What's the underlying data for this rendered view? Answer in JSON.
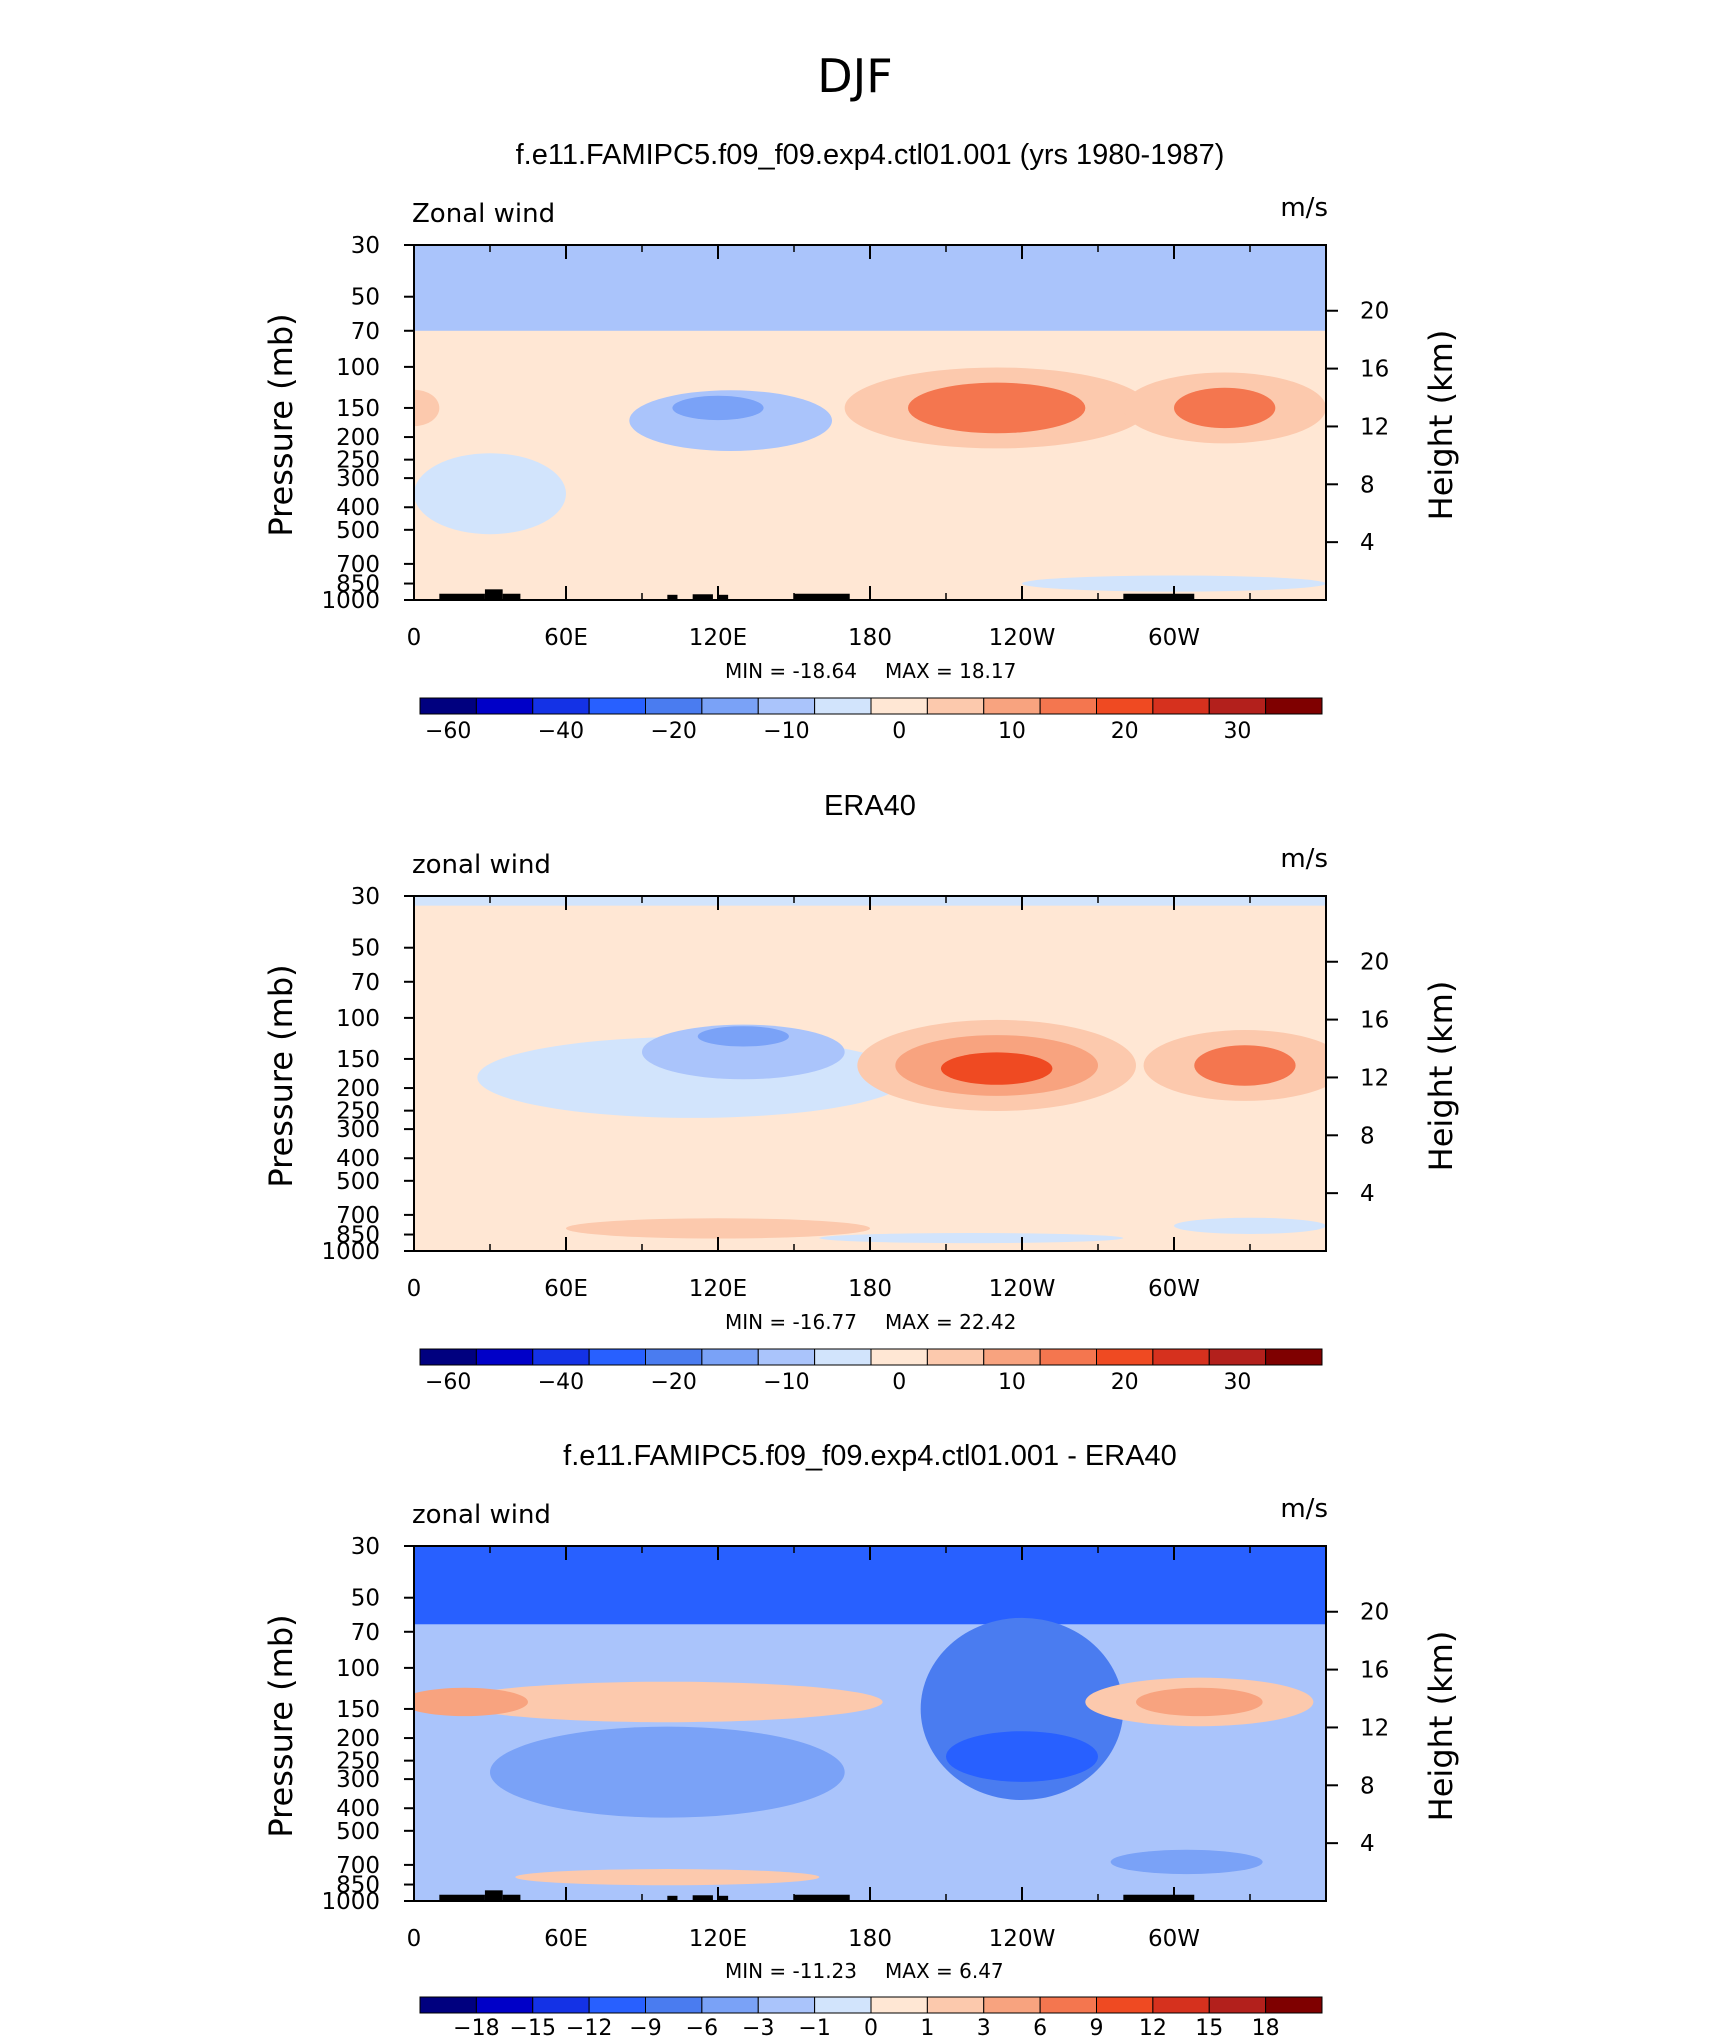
{
  "page": {
    "title": "DJF"
  },
  "colorbars": {
    "main_colors": [
      "#00007f",
      "#0000c8",
      "#1432e6",
      "#2860ff",
      "#4a7cf0",
      "#7aa2f7",
      "#aac4fb",
      "#d2e4fc",
      "#ffe7d4",
      "#fcc9ad",
      "#f8a37f",
      "#f4764f",
      "#ef4a22",
      "#d6311e",
      "#b3201c",
      "#7f0000"
    ],
    "main_labels": [
      "-60",
      "-40",
      "-20",
      "-10",
      "0",
      "10",
      "20",
      "30"
    ],
    "main_label_positions": [
      0.5,
      2.5,
      4.5,
      6.5,
      8.5,
      10.5,
      12.5,
      14.5
    ],
    "diff_colors": [
      "#00007f",
      "#0000c8",
      "#1432e6",
      "#2860ff",
      "#4a7cf0",
      "#7aa2f7",
      "#aac4fb",
      "#d2e4fc",
      "#ffe7d4",
      "#fcc9ad",
      "#f8a37f",
      "#f4764f",
      "#ef4a22",
      "#d6311e",
      "#b3201c",
      "#7f0000"
    ],
    "diff_labels": [
      "-18",
      "-15",
      "-12",
      "-9",
      "-6",
      "-3",
      "-1",
      "0",
      "1",
      "3",
      "6",
      "9",
      "12",
      "15",
      "18"
    ]
  },
  "chart_data": [
    {
      "type": "heatmap",
      "title": "f.e11.FAMIPC5.f09_f09.exp4.ctl01.001 (yrs 1980-1987)",
      "corner_left": "Zonal wind",
      "corner_right": "m/s",
      "ylabel": "Pressure (mb)",
      "ylabel_right": "Height (km)",
      "x_ticks": [
        "0",
        "60E",
        "120E",
        "180",
        "120W",
        "60W"
      ],
      "x_tick_lon": [
        0,
        60,
        120,
        180,
        240,
        300
      ],
      "xlim": [
        0,
        360
      ],
      "y_ticks": [
        "30",
        "50",
        "70",
        "100",
        "150",
        "200",
        "250",
        "300",
        "400",
        "500",
        "700",
        "850",
        "1000"
      ],
      "y_tick_p": [
        30,
        50,
        70,
        100,
        150,
        200,
        250,
        300,
        400,
        500,
        700,
        850,
        1000
      ],
      "ylim": [
        1000,
        30
      ],
      "y_scale": "log",
      "right_ticks": [
        "4",
        "8",
        "12",
        "16",
        "20"
      ],
      "right_tick_km": [
        4,
        8,
        12,
        16,
        20
      ],
      "stats_min_label": "MIN = -18.64",
      "stats_max_label": "MAX = 18.17",
      "min": -18.64,
      "max": 18.17,
      "background_level": 0,
      "features": [
        {
          "type": "band",
          "pmin": 30,
          "pmax": 70,
          "level": -10
        },
        {
          "type": "blob",
          "lon": 0,
          "p": 150,
          "rlon": 10,
          "rlogp": 0.18,
          "level": 5
        },
        {
          "type": "blob",
          "lon": 30,
          "p": 350,
          "rlon": 30,
          "rlogp": 0.4,
          "level": -5
        },
        {
          "type": "blob",
          "lon": 125,
          "p": 170,
          "rlon": 40,
          "rlogp": 0.3,
          "level": -8
        },
        {
          "type": "blob",
          "lon": 120,
          "p": 150,
          "rlon": 18,
          "rlogp": 0.12,
          "level": -13
        },
        {
          "type": "blob",
          "lon": 230,
          "p": 150,
          "rlon": 60,
          "rlogp": 0.4,
          "level": 8
        },
        {
          "type": "blob",
          "lon": 230,
          "p": 150,
          "rlon": 35,
          "rlogp": 0.25,
          "level": 16
        },
        {
          "type": "blob",
          "lon": 320,
          "p": 150,
          "rlon": 40,
          "rlogp": 0.35,
          "level": 8
        },
        {
          "type": "blob",
          "lon": 320,
          "p": 150,
          "rlon": 20,
          "rlogp": 0.2,
          "level": 16
        },
        {
          "type": "blob",
          "lon": 100,
          "p": 780,
          "rlon": 55,
          "rlogp": 0.12,
          "level": 4
        },
        {
          "type": "blob",
          "lon": 300,
          "p": 850,
          "rlon": 60,
          "rlogp": 0.08,
          "level": -5
        }
      ],
      "topography": [
        [
          10,
          28,
          1000,
          940
        ],
        [
          28,
          35,
          1000,
          900
        ],
        [
          35,
          42,
          1000,
          940
        ],
        [
          100,
          104,
          1000,
          950
        ],
        [
          110,
          118,
          1000,
          945
        ],
        [
          120,
          124,
          1000,
          950
        ],
        [
          150,
          172,
          1000,
          940
        ],
        [
          280,
          308,
          1000,
          940
        ]
      ]
    },
    {
      "type": "heatmap",
      "title": "ERA40",
      "corner_left": "zonal wind",
      "corner_right": "m/s",
      "ylabel": "Pressure (mb)",
      "ylabel_right": "Height (km)",
      "x_ticks": [
        "0",
        "60E",
        "120E",
        "180",
        "120W",
        "60W"
      ],
      "x_tick_lon": [
        0,
        60,
        120,
        180,
        240,
        300
      ],
      "xlim": [
        0,
        360
      ],
      "y_ticks": [
        "30",
        "50",
        "70",
        "100",
        "150",
        "200",
        "250",
        "300",
        "400",
        "500",
        "700",
        "850",
        "1000"
      ],
      "y_tick_p": [
        30,
        50,
        70,
        100,
        150,
        200,
        250,
        300,
        400,
        500,
        700,
        850,
        1000
      ],
      "ylim": [
        1000,
        30
      ],
      "y_scale": "log",
      "right_ticks": [
        "4",
        "8",
        "12",
        "16",
        "20"
      ],
      "right_tick_km": [
        4,
        8,
        12,
        16,
        20
      ],
      "stats_min_label": "MIN = -16.77",
      "stats_max_label": "MAX = 22.42",
      "min": -16.77,
      "max": 22.42,
      "background_level": 2,
      "features": [
        {
          "type": "band",
          "pmin": 30,
          "pmax": 33,
          "level": -5
        },
        {
          "type": "blob",
          "lon": 110,
          "p": 180,
          "rlon": 85,
          "rlogp": 0.4,
          "level": -5
        },
        {
          "type": "blob",
          "lon": 130,
          "p": 140,
          "rlon": 40,
          "rlogp": 0.27,
          "level": -8
        },
        {
          "type": "blob",
          "lon": 130,
          "p": 120,
          "rlon": 18,
          "rlogp": 0.1,
          "level": -13
        },
        {
          "type": "blob",
          "lon": 230,
          "p": 160,
          "rlon": 55,
          "rlogp": 0.45,
          "level": 6
        },
        {
          "type": "blob",
          "lon": 230,
          "p": 160,
          "rlon": 40,
          "rlogp": 0.3,
          "level": 13
        },
        {
          "type": "blob",
          "lon": 230,
          "p": 165,
          "rlon": 22,
          "rlogp": 0.16,
          "level": 20
        },
        {
          "type": "blob",
          "lon": 328,
          "p": 160,
          "rlon": 40,
          "rlogp": 0.35,
          "level": 8
        },
        {
          "type": "blob",
          "lon": 328,
          "p": 160,
          "rlon": 20,
          "rlogp": 0.2,
          "level": 16
        },
        {
          "type": "blob",
          "lon": 120,
          "p": 800,
          "rlon": 60,
          "rlogp": 0.1,
          "level": 5
        },
        {
          "type": "blob",
          "lon": 220,
          "p": 880,
          "rlon": 60,
          "rlogp": 0.05,
          "level": -5
        },
        {
          "type": "blob",
          "lon": 330,
          "p": 780,
          "rlon": 30,
          "rlogp": 0.08,
          "level": -5
        }
      ],
      "topography": []
    },
    {
      "type": "heatmap",
      "title": "f.e11.FAMIPC5.f09_f09.exp4.ctl01.001 - ERA40",
      "corner_left": "zonal wind",
      "corner_right": "m/s",
      "ylabel": "Pressure (mb)",
      "ylabel_right": "Height (km)",
      "x_ticks": [
        "0",
        "60E",
        "120E",
        "180",
        "120W",
        "60W"
      ],
      "x_tick_lon": [
        0,
        60,
        120,
        180,
        240,
        300
      ],
      "xlim": [
        0,
        360
      ],
      "y_ticks": [
        "30",
        "50",
        "70",
        "100",
        "150",
        "200",
        "250",
        "300",
        "400",
        "500",
        "700",
        "850",
        "1000"
      ],
      "y_tick_p": [
        30,
        50,
        70,
        100,
        150,
        200,
        250,
        300,
        400,
        500,
        700,
        850,
        1000
      ],
      "ylim": [
        1000,
        30
      ],
      "y_scale": "log",
      "right_ticks": [
        "4",
        "8",
        "12",
        "16",
        "20"
      ],
      "right_tick_km": [
        4,
        8,
        12,
        16,
        20
      ],
      "stats_min_label": "MIN = -11.23",
      "stats_max_label": "MAX = 6.47",
      "min": -11.23,
      "max": 6.47,
      "background_level": -2,
      "features": [
        {
          "type": "band",
          "pmin": 30,
          "pmax": 65,
          "level": -10
        },
        {
          "type": "blob",
          "lon": 240,
          "p": 150,
          "rlon": 40,
          "rlogp": 0.9,
          "level": -7
        },
        {
          "type": "blob",
          "lon": 100,
          "p": 280,
          "rlon": 70,
          "rlogp": 0.45,
          "level": -5
        },
        {
          "type": "blob",
          "lon": 240,
          "p": 240,
          "rlon": 30,
          "rlogp": 0.25,
          "level": -10
        },
        {
          "type": "blob",
          "lon": 100,
          "p": 140,
          "rlon": 85,
          "rlogp": 0.2,
          "level": 2
        },
        {
          "type": "blob",
          "lon": 20,
          "p": 140,
          "rlon": 25,
          "rlogp": 0.14,
          "level": 4
        },
        {
          "type": "blob",
          "lon": 310,
          "p": 140,
          "rlon": 45,
          "rlogp": 0.24,
          "level": 2
        },
        {
          "type": "blob",
          "lon": 310,
          "p": 140,
          "rlon": 25,
          "rlogp": 0.14,
          "level": 4
        },
        {
          "type": "blob",
          "lon": 100,
          "p": 790,
          "rlon": 60,
          "rlogp": 0.08,
          "level": 2
        },
        {
          "type": "blob",
          "lon": 305,
          "p": 680,
          "rlon": 30,
          "rlogp": 0.12,
          "level": -5
        }
      ],
      "topography": [
        [
          10,
          28,
          1000,
          940
        ],
        [
          28,
          35,
          1000,
          900
        ],
        [
          35,
          42,
          1000,
          940
        ],
        [
          100,
          104,
          1000,
          950
        ],
        [
          110,
          118,
          1000,
          945
        ],
        [
          120,
          124,
          1000,
          950
        ],
        [
          150,
          172,
          1000,
          940
        ],
        [
          280,
          308,
          1000,
          940
        ]
      ]
    }
  ]
}
